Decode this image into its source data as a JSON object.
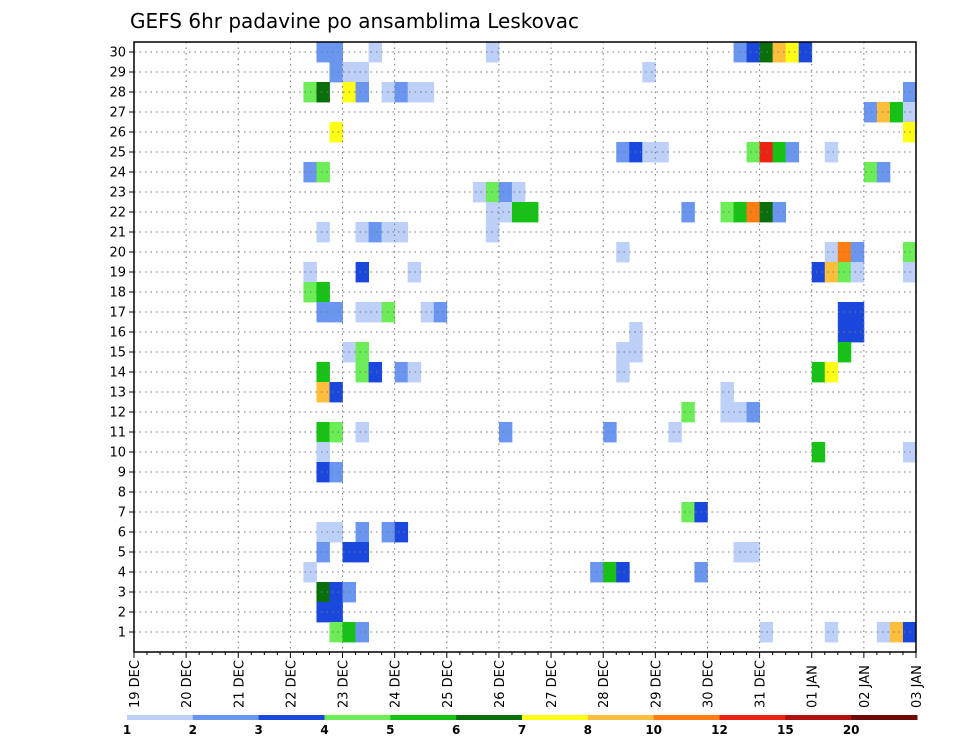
{
  "chart_data": {
    "type": "heatmap",
    "title": "GEFS 6hr padavine po ansamblima Leskovac",
    "x_ticks": [
      "19 DEC",
      "20 DEC",
      "21 DEC",
      "22 DEC",
      "23 DEC",
      "24 DEC",
      "25 DEC",
      "26 DEC",
      "27 DEC",
      "28 DEC",
      "29 DEC",
      "30 DEC",
      "31 DEC",
      "01 JAN",
      "02 JAN",
      "03 JAN"
    ],
    "y_ticks": [
      "1",
      "2",
      "3",
      "4",
      "5",
      "6",
      "7",
      "8",
      "9",
      "10",
      "11",
      "12",
      "13",
      "14",
      "15",
      "16",
      "17",
      "18",
      "19",
      "20",
      "21",
      "22",
      "23",
      "24",
      "25",
      "26",
      "27",
      "28",
      "29",
      "30"
    ],
    "xlim_steps": [
      0,
      60
    ],
    "ylim_members": [
      0.5,
      30.5
    ],
    "grid": true,
    "legend": {
      "placement": "bottom",
      "colors": [
        "#bcd0f8",
        "#6a96f0",
        "#1a48dc",
        "#6ced58",
        "#16c216",
        "#0a6e0a",
        "#ffff16",
        "#ffbe3c",
        "#ff7c10",
        "#ec2414",
        "#b01010",
        "#700a0a"
      ],
      "labels": [
        "1",
        "2",
        "3",
        "4",
        "5",
        "6",
        "7",
        "8",
        "10",
        "12",
        "15",
        "20"
      ]
    },
    "cells": [
      {
        "m": 30,
        "t": 14,
        "c": 1
      },
      {
        "m": 30,
        "t": 15,
        "c": 1
      },
      {
        "m": 30,
        "t": 18,
        "c": 0
      },
      {
        "m": 30,
        "t": 27,
        "c": 0
      },
      {
        "m": 30,
        "t": 46,
        "c": 1
      },
      {
        "m": 30,
        "t": 47,
        "c": 2
      },
      {
        "m": 30,
        "t": 48,
        "c": 5
      },
      {
        "m": 30,
        "t": 49,
        "c": 7
      },
      {
        "m": 30,
        "t": 50,
        "c": 6
      },
      {
        "m": 30,
        "t": 51,
        "c": 2
      },
      {
        "m": 29,
        "t": 15,
        "c": 1
      },
      {
        "m": 29,
        "t": 16,
        "c": 0
      },
      {
        "m": 29,
        "t": 17,
        "c": 0
      },
      {
        "m": 29,
        "t": 39,
        "c": 0
      },
      {
        "m": 28,
        "t": 13,
        "c": 3
      },
      {
        "m": 28,
        "t": 14,
        "c": 5
      },
      {
        "m": 28,
        "t": 16,
        "c": 6
      },
      {
        "m": 28,
        "t": 17,
        "c": 1
      },
      {
        "m": 28,
        "t": 19,
        "c": 0
      },
      {
        "m": 28,
        "t": 20,
        "c": 1
      },
      {
        "m": 28,
        "t": 21,
        "c": 0
      },
      {
        "m": 28,
        "t": 22,
        "c": 0
      },
      {
        "m": 28,
        "t": 59,
        "c": 1
      },
      {
        "m": 27,
        "t": 56,
        "c": 1
      },
      {
        "m": 27,
        "t": 57,
        "c": 7
      },
      {
        "m": 27,
        "t": 58,
        "c": 4
      },
      {
        "m": 27,
        "t": 59,
        "c": 0
      },
      {
        "m": 26,
        "t": 15,
        "c": 6
      },
      {
        "m": 26,
        "t": 59,
        "c": 6
      },
      {
        "m": 25,
        "t": 37,
        "c": 1
      },
      {
        "m": 25,
        "t": 38,
        "c": 2
      },
      {
        "m": 25,
        "t": 39,
        "c": 0
      },
      {
        "m": 25,
        "t": 40,
        "c": 0
      },
      {
        "m": 25,
        "t": 47,
        "c": 3
      },
      {
        "m": 25,
        "t": 48,
        "c": 9
      },
      {
        "m": 25,
        "t": 49,
        "c": 4
      },
      {
        "m": 25,
        "t": 50,
        "c": 1
      },
      {
        "m": 25,
        "t": 53,
        "c": 0
      },
      {
        "m": 24,
        "t": 13,
        "c": 1
      },
      {
        "m": 24,
        "t": 14,
        "c": 3
      },
      {
        "m": 24,
        "t": 56,
        "c": 3
      },
      {
        "m": 24,
        "t": 57,
        "c": 1
      },
      {
        "m": 23,
        "t": 26,
        "c": 0
      },
      {
        "m": 23,
        "t": 27,
        "c": 3
      },
      {
        "m": 23,
        "t": 28,
        "c": 1
      },
      {
        "m": 23,
        "t": 29,
        "c": 0
      },
      {
        "m": 22,
        "t": 27,
        "c": 0
      },
      {
        "m": 22,
        "t": 28,
        "c": 0
      },
      {
        "m": 22,
        "t": 29,
        "c": 4
      },
      {
        "m": 22,
        "t": 30,
        "c": 4
      },
      {
        "m": 22,
        "t": 42,
        "c": 1
      },
      {
        "m": 22,
        "t": 45,
        "c": 3
      },
      {
        "m": 22,
        "t": 46,
        "c": 4
      },
      {
        "m": 22,
        "t": 47,
        "c": 8
      },
      {
        "m": 22,
        "t": 48,
        "c": 5
      },
      {
        "m": 22,
        "t": 49,
        "c": 1
      },
      {
        "m": 21,
        "t": 14,
        "c": 0
      },
      {
        "m": 21,
        "t": 17,
        "c": 0
      },
      {
        "m": 21,
        "t": 18,
        "c": 1
      },
      {
        "m": 21,
        "t": 19,
        "c": 0
      },
      {
        "m": 21,
        "t": 20,
        "c": 0
      },
      {
        "m": 21,
        "t": 27,
        "c": 0
      },
      {
        "m": 20,
        "t": 37,
        "c": 0
      },
      {
        "m": 20,
        "t": 53,
        "c": 0
      },
      {
        "m": 20,
        "t": 54,
        "c": 8
      },
      {
        "m": 20,
        "t": 55,
        "c": 1
      },
      {
        "m": 20,
        "t": 59,
        "c": 3
      },
      {
        "m": 19,
        "t": 13,
        "c": 0
      },
      {
        "m": 19,
        "t": 17,
        "c": 2
      },
      {
        "m": 19,
        "t": 21,
        "c": 0
      },
      {
        "m": 19,
        "t": 52,
        "c": 2
      },
      {
        "m": 19,
        "t": 53,
        "c": 7
      },
      {
        "m": 19,
        "t": 54,
        "c": 3
      },
      {
        "m": 19,
        "t": 55,
        "c": 0
      },
      {
        "m": 19,
        "t": 59,
        "c": 0
      },
      {
        "m": 18,
        "t": 13,
        "c": 3
      },
      {
        "m": 18,
        "t": 14,
        "c": 4
      },
      {
        "m": 17,
        "t": 14,
        "c": 1
      },
      {
        "m": 17,
        "t": 15,
        "c": 1
      },
      {
        "m": 17,
        "t": 17,
        "c": 0
      },
      {
        "m": 17,
        "t": 18,
        "c": 0
      },
      {
        "m": 17,
        "t": 19,
        "c": 3
      },
      {
        "m": 17,
        "t": 22,
        "c": 0
      },
      {
        "m": 17,
        "t": 23,
        "c": 1
      },
      {
        "m": 17,
        "t": 54,
        "c": 2
      },
      {
        "m": 17,
        "t": 55,
        "c": 2
      },
      {
        "m": 16,
        "t": 38,
        "c": 0
      },
      {
        "m": 16,
        "t": 54,
        "c": 2
      },
      {
        "m": 16,
        "t": 55,
        "c": 2
      },
      {
        "m": 15,
        "t": 16,
        "c": 0
      },
      {
        "m": 15,
        "t": 17,
        "c": 3
      },
      {
        "m": 15,
        "t": 37,
        "c": 0
      },
      {
        "m": 15,
        "t": 38,
        "c": 0
      },
      {
        "m": 15,
        "t": 54,
        "c": 4
      },
      {
        "m": 14,
        "t": 14,
        "c": 4
      },
      {
        "m": 14,
        "t": 17,
        "c": 3
      },
      {
        "m": 14,
        "t": 18,
        "c": 2
      },
      {
        "m": 14,
        "t": 20,
        "c": 1
      },
      {
        "m": 14,
        "t": 21,
        "c": 0
      },
      {
        "m": 14,
        "t": 37,
        "c": 0
      },
      {
        "m": 14,
        "t": 52,
        "c": 4
      },
      {
        "m": 14,
        "t": 53,
        "c": 6
      },
      {
        "m": 13,
        "t": 14,
        "c": 7
      },
      {
        "m": 13,
        "t": 15,
        "c": 2
      },
      {
        "m": 13,
        "t": 45,
        "c": 0
      },
      {
        "m": 12,
        "t": 42,
        "c": 3
      },
      {
        "m": 12,
        "t": 45,
        "c": 0
      },
      {
        "m": 12,
        "t": 46,
        "c": 0
      },
      {
        "m": 12,
        "t": 47,
        "c": 1
      },
      {
        "m": 11,
        "t": 14,
        "c": 4
      },
      {
        "m": 11,
        "t": 15,
        "c": 3
      },
      {
        "m": 11,
        "t": 17,
        "c": 0
      },
      {
        "m": 11,
        "t": 28,
        "c": 1
      },
      {
        "m": 11,
        "t": 36,
        "c": 1
      },
      {
        "m": 11,
        "t": 41,
        "c": 0
      },
      {
        "m": 10,
        "t": 14,
        "c": 0
      },
      {
        "m": 10,
        "t": 52,
        "c": 4
      },
      {
        "m": 10,
        "t": 59,
        "c": 0
      },
      {
        "m": 9,
        "t": 14,
        "c": 2
      },
      {
        "m": 9,
        "t": 15,
        "c": 1
      },
      {
        "m": 7,
        "t": 42,
        "c": 3
      },
      {
        "m": 7,
        "t": 43,
        "c": 2
      },
      {
        "m": 6,
        "t": 14,
        "c": 0
      },
      {
        "m": 6,
        "t": 15,
        "c": 0
      },
      {
        "m": 6,
        "t": 17,
        "c": 1
      },
      {
        "m": 6,
        "t": 19,
        "c": 1
      },
      {
        "m": 6,
        "t": 20,
        "c": 2
      },
      {
        "m": 5,
        "t": 14,
        "c": 1
      },
      {
        "m": 5,
        "t": 16,
        "c": 2
      },
      {
        "m": 5,
        "t": 17,
        "c": 2
      },
      {
        "m": 5,
        "t": 46,
        "c": 0
      },
      {
        "m": 5,
        "t": 47,
        "c": 0
      },
      {
        "m": 4,
        "t": 13,
        "c": 0
      },
      {
        "m": 4,
        "t": 35,
        "c": 1
      },
      {
        "m": 4,
        "t": 36,
        "c": 4
      },
      {
        "m": 4,
        "t": 37,
        "c": 2
      },
      {
        "m": 4,
        "t": 43,
        "c": 1
      },
      {
        "m": 3,
        "t": 14,
        "c": 5
      },
      {
        "m": 3,
        "t": 15,
        "c": 2
      },
      {
        "m": 3,
        "t": 16,
        "c": 1
      },
      {
        "m": 2,
        "t": 14,
        "c": 2
      },
      {
        "m": 2,
        "t": 15,
        "c": 2
      },
      {
        "m": 1,
        "t": 15,
        "c": 3
      },
      {
        "m": 1,
        "t": 16,
        "c": 4
      },
      {
        "m": 1,
        "t": 17,
        "c": 1
      },
      {
        "m": 1,
        "t": 48,
        "c": 0
      },
      {
        "m": 1,
        "t": 53,
        "c": 0
      },
      {
        "m": 1,
        "t": 57,
        "c": 0
      },
      {
        "m": 1,
        "t": 58,
        "c": 7
      },
      {
        "m": 1,
        "t": 59,
        "c": 2
      }
    ]
  }
}
